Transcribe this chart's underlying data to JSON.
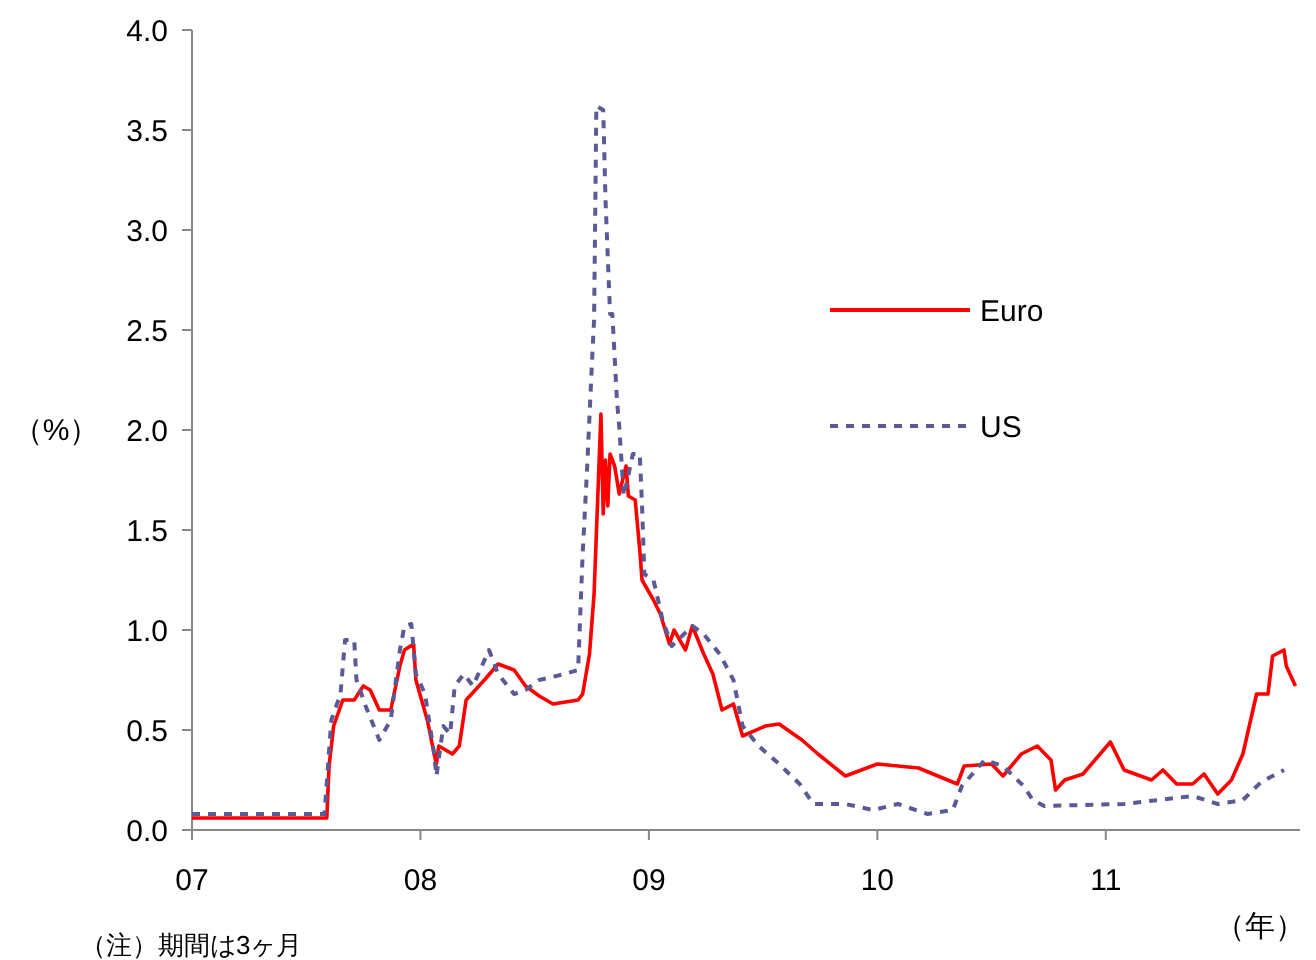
{
  "chart_data": {
    "type": "line",
    "ylabel": "（%）",
    "xlabel": "（年）",
    "annotations": [
      "（注）期間は3ヶ月"
    ],
    "xlim": [
      2007,
      2011.85
    ],
    "xticks": [
      {
        "value": 2007,
        "label": "07"
      },
      {
        "value": 2008,
        "label": "08"
      },
      {
        "value": 2009,
        "label": "09"
      },
      {
        "value": 2010,
        "label": "10"
      },
      {
        "value": 2011,
        "label": "11"
      }
    ],
    "ylim": [
      0,
      4
    ],
    "yticks": [
      {
        "value": 0,
        "label": "0.0"
      },
      {
        "value": 0.5,
        "label": "0.5"
      },
      {
        "value": 1,
        "label": "1.0"
      },
      {
        "value": 1.5,
        "label": "1.5"
      },
      {
        "value": 2,
        "label": "2.0"
      },
      {
        "value": 2.5,
        "label": "2.5"
      },
      {
        "value": 3,
        "label": "3.0"
      },
      {
        "value": 3.5,
        "label": "3.5"
      },
      {
        "value": 4,
        "label": "4.0"
      }
    ],
    "grid": false,
    "legend": "right",
    "marker": "none",
    "series": [
      {
        "name": "Euro",
        "color": "#ff0000",
        "line_style": "solid",
        "x": [
          2007.0,
          2007.59,
          2007.6,
          2007.62,
          2007.66,
          2007.71,
          2007.75,
          2007.78,
          2007.82,
          2007.87,
          2007.91,
          2007.93,
          2007.97,
          2007.98,
          2008.0,
          2008.03,
          2008.06,
          2008.07,
          2008.08,
          2008.14,
          2008.17,
          2008.2,
          2008.24,
          2008.28,
          2008.34,
          2008.41,
          2008.46,
          2008.52,
          2008.58,
          2008.69,
          2008.71,
          2008.74,
          2008.76,
          2008.77,
          2008.79,
          2008.8,
          2008.81,
          2008.82,
          2008.83,
          2008.85,
          2008.87,
          2008.9,
          2008.91,
          2008.94,
          2008.96,
          2008.97,
          2009.02,
          2009.05,
          2009.09,
          2009.11,
          2009.16,
          2009.19,
          2009.24,
          2009.28,
          2009.32,
          2009.37,
          2009.41,
          2009.51,
          2009.57,
          2009.67,
          2009.74,
          2009.86,
          2010.0,
          2010.18,
          2010.35,
          2010.38,
          2010.5,
          2010.55,
          2010.63,
          2010.7,
          2010.76,
          2010.78,
          2010.82,
          2010.9,
          2011.02,
          2011.08,
          2011.2,
          2011.25,
          2011.31,
          2011.38,
          2011.43,
          2011.49,
          2011.55,
          2011.6,
          2011.64,
          2011.66,
          2011.71,
          2011.73,
          2011.78,
          2011.79,
          2011.83
        ],
        "values": [
          0.06,
          0.06,
          0.32,
          0.52,
          0.65,
          0.65,
          0.72,
          0.7,
          0.6,
          0.6,
          0.82,
          0.9,
          0.93,
          0.75,
          0.67,
          0.55,
          0.38,
          0.33,
          0.42,
          0.38,
          0.42,
          0.65,
          0.7,
          0.75,
          0.83,
          0.8,
          0.72,
          0.67,
          0.63,
          0.65,
          0.68,
          0.88,
          1.18,
          1.48,
          2.08,
          1.58,
          1.85,
          1.62,
          1.88,
          1.82,
          1.68,
          1.82,
          1.67,
          1.65,
          1.4,
          1.25,
          1.15,
          1.08,
          0.93,
          1.0,
          0.9,
          1.02,
          0.88,
          0.78,
          0.6,
          0.63,
          0.47,
          0.52,
          0.53,
          0.45,
          0.38,
          0.27,
          0.33,
          0.31,
          0.23,
          0.32,
          0.33,
          0.27,
          0.38,
          0.42,
          0.35,
          0.2,
          0.25,
          0.28,
          0.44,
          0.3,
          0.25,
          0.3,
          0.23,
          0.23,
          0.28,
          0.18,
          0.25,
          0.38,
          0.58,
          0.68,
          0.68,
          0.87,
          0.9,
          0.82,
          0.72
        ]
      },
      {
        "name": "US",
        "color": "#5a5a96",
        "line_style": "dashed",
        "x": [
          2007.0,
          2007.58,
          2007.61,
          2007.65,
          2007.67,
          2007.71,
          2007.72,
          2007.76,
          2007.82,
          2007.87,
          2007.91,
          2007.93,
          2007.96,
          2007.98,
          2008.02,
          2008.06,
          2008.07,
          2008.1,
          2008.13,
          2008.15,
          2008.19,
          2008.23,
          2008.3,
          2008.34,
          2008.41,
          2008.46,
          2008.52,
          2008.63,
          2008.69,
          2008.71,
          2008.73,
          2008.75,
          2008.76,
          2008.77,
          2008.8,
          2008.81,
          2008.83,
          2008.84,
          2008.86,
          2008.87,
          2008.89,
          2008.93,
          2008.96,
          2008.97,
          2008.98,
          2009.02,
          2009.06,
          2009.1,
          2009.19,
          2009.24,
          2009.31,
          2009.37,
          2009.41,
          2009.48,
          2009.57,
          2009.66,
          2009.72,
          2009.86,
          2009.98,
          2010.09,
          2010.22,
          2010.33,
          2010.37,
          2010.47,
          2010.55,
          2010.64,
          2010.68,
          2010.73,
          2011.08,
          2011.38,
          2011.49,
          2011.6,
          2011.68,
          2011.78
        ],
        "values": [
          0.08,
          0.08,
          0.55,
          0.68,
          0.95,
          0.95,
          0.75,
          0.62,
          0.45,
          0.55,
          0.9,
          1.02,
          1.03,
          0.78,
          0.68,
          0.38,
          0.27,
          0.52,
          0.48,
          0.72,
          0.78,
          0.72,
          0.9,
          0.78,
          0.68,
          0.7,
          0.75,
          0.78,
          0.8,
          1.38,
          1.82,
          2.32,
          2.55,
          3.62,
          3.6,
          3.15,
          2.58,
          2.58,
          2.15,
          2.02,
          1.67,
          1.88,
          1.88,
          1.62,
          1.28,
          1.25,
          1.05,
          0.92,
          1.02,
          0.98,
          0.88,
          0.75,
          0.52,
          0.42,
          0.33,
          0.23,
          0.13,
          0.13,
          0.1,
          0.13,
          0.08,
          0.1,
          0.22,
          0.35,
          0.32,
          0.22,
          0.15,
          0.12,
          0.13,
          0.17,
          0.13,
          0.15,
          0.24,
          0.3
        ]
      }
    ]
  }
}
